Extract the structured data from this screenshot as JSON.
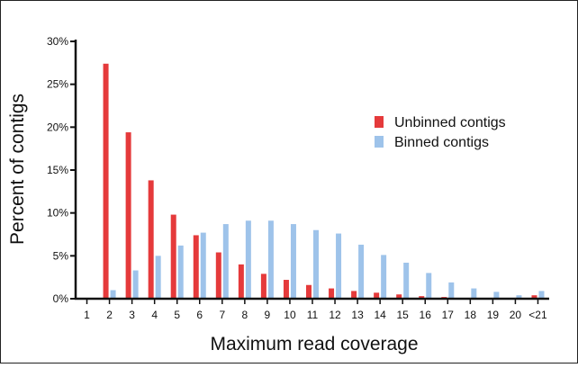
{
  "colors": {
    "unbinned": "#e53a3b",
    "binned": "#9ec3ea",
    "axis": "#111111",
    "frame": "#222222"
  },
  "chart_data": {
    "type": "bar",
    "xlabel": "Maximum read coverage",
    "ylabel": "Percent of contigs",
    "categories": [
      "1",
      "2",
      "3",
      "4",
      "5",
      "6",
      "7",
      "8",
      "9",
      "10",
      "11",
      "12",
      "13",
      "14",
      "15",
      "16",
      "17",
      "18",
      "19",
      "20",
      "<21"
    ],
    "ylim": [
      0,
      30
    ],
    "yticks": [
      0,
      5,
      10,
      15,
      20,
      25,
      30
    ],
    "ytick_labels": [
      "0%",
      "5%",
      "10%",
      "15%",
      "20%",
      "25%",
      "30%"
    ],
    "grid": false,
    "legend_position": "right",
    "series": [
      {
        "name": "Unbinned contigs",
        "values": [
          0,
          27.4,
          19.4,
          13.8,
          9.8,
          7.4,
          5.4,
          4.0,
          2.9,
          2.2,
          1.6,
          1.2,
          0.9,
          0.7,
          0.5,
          0.3,
          0.2,
          0,
          0,
          0,
          0.4
        ]
      },
      {
        "name": "Binned contigs",
        "values": [
          0,
          1.0,
          3.3,
          5.0,
          6.2,
          7.7,
          8.7,
          9.1,
          9.1,
          8.7,
          8.0,
          7.6,
          6.3,
          5.1,
          4.2,
          3.0,
          1.9,
          1.2,
          0.8,
          0.4,
          0.9
        ]
      }
    ]
  }
}
